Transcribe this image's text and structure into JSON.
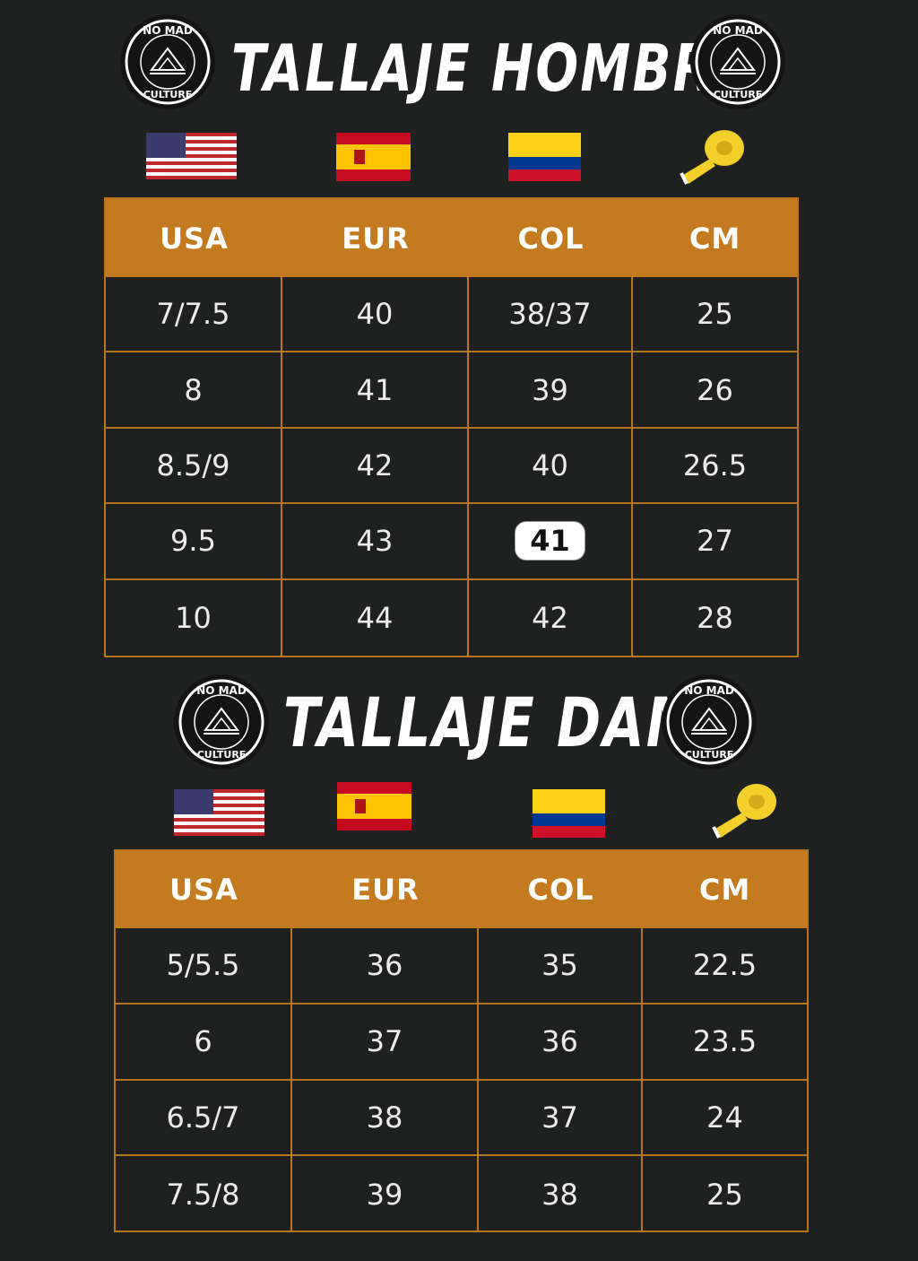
{
  "men": {
    "title": "TALLAJE  HOMBRE",
    "headers": [
      "USA",
      "EUR",
      "COL",
      "CM"
    ],
    "rows": [
      [
        "7/7.5",
        "40",
        "38/37",
        "25"
      ],
      [
        "8",
        "41",
        "39",
        "26"
      ],
      [
        "8.5/9",
        "42",
        "40",
        "26.5"
      ],
      [
        "9.5",
        "43",
        "41",
        "27"
      ],
      [
        "10",
        "44",
        "42",
        "28"
      ]
    ],
    "highlighted_cell": {
      "row": 3,
      "col": 2
    }
  },
  "women": {
    "title": "TALLAJE DAMA",
    "headers": [
      "USA",
      "EUR",
      "COL",
      "CM"
    ],
    "rows": [
      [
        "5/5.5",
        "36",
        "35",
        "22.5"
      ],
      [
        "6",
        "37",
        "36",
        "23.5"
      ],
      [
        "6.5/7",
        "38",
        "37",
        "24"
      ],
      [
        "7.5/8",
        "39",
        "38",
        "25"
      ]
    ]
  },
  "logo": {
    "top_text": "NO MAD",
    "bottom_text": "CULTURE"
  },
  "icons": [
    "usa-flag-icon",
    "spain-flag-icon",
    "colombia-flag-icon",
    "measuring-tape-icon"
  ],
  "colors": {
    "background": "#1f2020",
    "accent": "#c47a1f",
    "text": "#ececec"
  }
}
